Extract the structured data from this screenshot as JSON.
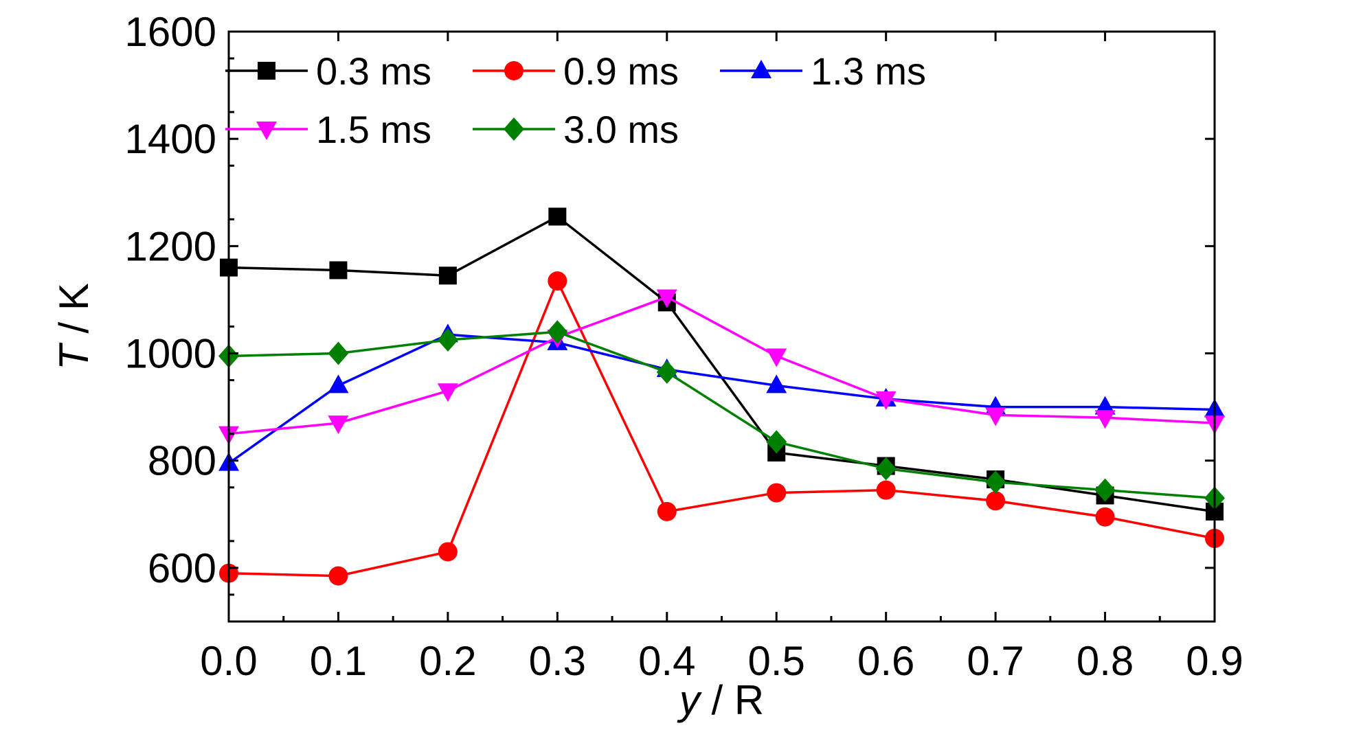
{
  "chart_data": {
    "type": "line",
    "xlabel_var": "y",
    "xlabel_rest": " / R",
    "ylabel_var": "T",
    "ylabel_rest": " / K",
    "xlim": [
      0.0,
      0.9
    ],
    "ylim": [
      500,
      1600
    ],
    "xticks": [
      "0.0",
      "0.1",
      "0.2",
      "0.3",
      "0.4",
      "0.5",
      "0.6",
      "0.7",
      "0.8",
      "0.9"
    ],
    "yticks": [
      "600",
      "800",
      "1000",
      "1200",
      "1400",
      "1600"
    ],
    "x": [
      0.0,
      0.1,
      0.2,
      0.3,
      0.4,
      0.5,
      0.6,
      0.7,
      0.8,
      0.9
    ],
    "series": [
      {
        "name": "0.3 ms",
        "color": "#000000",
        "marker": "square",
        "values": [
          1160,
          1155,
          1145,
          1255,
          1095,
          815,
          790,
          765,
          735,
          705
        ]
      },
      {
        "name": "0.9 ms",
        "color": "#ff0000",
        "marker": "circle",
        "values": [
          590,
          585,
          630,
          1135,
          705,
          740,
          745,
          725,
          695,
          655
        ]
      },
      {
        "name": "1.3 ms",
        "color": "#0000ff",
        "marker": "triangle-up",
        "values": [
          795,
          940,
          1035,
          1020,
          970,
          940,
          915,
          900,
          900,
          895
        ]
      },
      {
        "name": "1.5 ms",
        "color": "#ff00ff",
        "marker": "triangle-down",
        "values": [
          850,
          870,
          930,
          1030,
          1105,
          995,
          915,
          885,
          880,
          870
        ]
      },
      {
        "name": "3.0 ms",
        "color": "#008000",
        "marker": "diamond",
        "values": [
          995,
          1000,
          1025,
          1040,
          965,
          835,
          785,
          760,
          745,
          730
        ]
      }
    ],
    "legend_position": "top-left",
    "grid": false
  }
}
